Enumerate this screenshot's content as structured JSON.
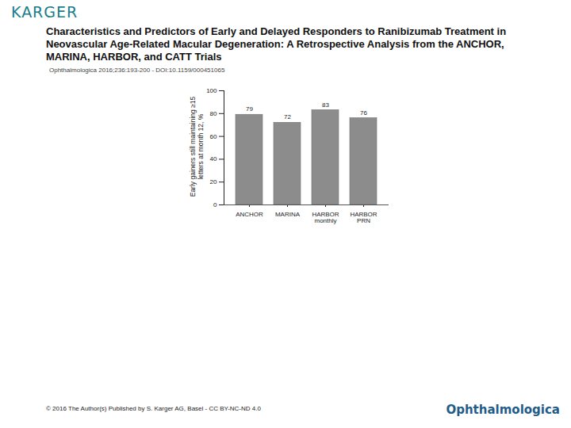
{
  "header": {
    "logo": "KARGER",
    "title": "Characteristics and Predictors of Early and Delayed Responders to Ranibizumab Treatment in Neovascular Age-Related Macular Degeneration: A Retrospective Analysis from the ANCHOR, MARINA, HARBOR, and CATT Trials",
    "citation": "Ophthalmologica 2016;236:193-200 - DOI:10.1159/000451065"
  },
  "chart_data": {
    "type": "bar",
    "y_label": "Early gainers still maintaining ≥15 letters at month 12, %",
    "categories": [
      "ANCHOR",
      "MARINA",
      "HARBOR monthly",
      "HARBOR PRN"
    ],
    "values": [
      79,
      72,
      83,
      76
    ],
    "color": "#8c8c8c",
    "ylim": [
      0,
      100
    ],
    "yticks": [
      0,
      20,
      40,
      60,
      80,
      100
    ],
    "grid": false,
    "data_labels": true
  },
  "footer": {
    "copyright": "© 2016 The Author(s) Published by S. Karger AG, Basel - CC BY-NC-ND 4.0",
    "journal": "Ophthalmologica"
  }
}
